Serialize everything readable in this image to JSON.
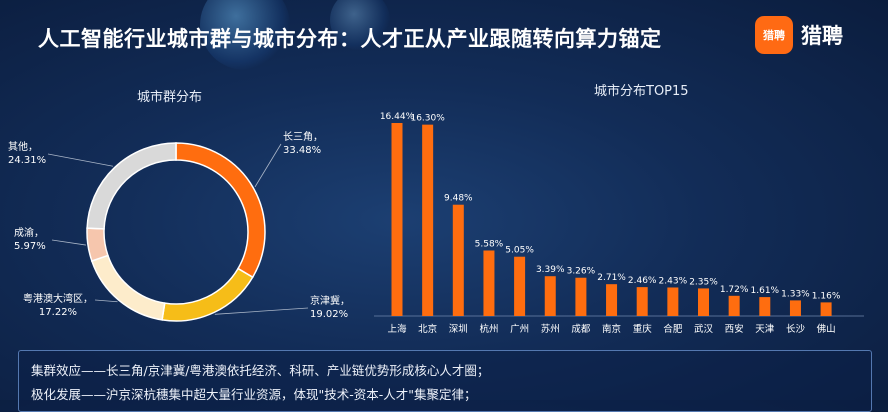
{
  "header": {
    "title": "人工智能行业城市群与城市分布：人才正从产业跟随转向算力锚定",
    "brand_logo_text": "猎聘",
    "brand_name": "猎聘",
    "brand_color": "#ff6a13"
  },
  "chart_data": [
    {
      "type": "pie",
      "title": "城市群分布",
      "donut": true,
      "categories": [
        "长三角",
        "京津冀",
        "粤港澳大湾区",
        "成渝",
        "其他"
      ],
      "values": [
        33.48,
        19.02,
        17.22,
        5.97,
        24.31
      ],
      "labels": [
        "33.48%",
        "19.02%",
        "17.22%",
        "5.97%",
        "24.31%"
      ],
      "colors": [
        "#ff6d0f",
        "#f6bd18",
        "#fdeccb",
        "#f6c6ad",
        "#d9d9d9"
      ]
    },
    {
      "type": "bar",
      "title": "城市分布TOP15",
      "categories": [
        "上海",
        "北京",
        "深圳",
        "杭州",
        "广州",
        "苏州",
        "成都",
        "南京",
        "重庆",
        "合肥",
        "武汉",
        "西安",
        "天津",
        "长沙",
        "佛山"
      ],
      "values": [
        16.44,
        16.3,
        9.48,
        5.58,
        5.05,
        3.39,
        3.26,
        2.71,
        2.46,
        2.43,
        2.35,
        1.72,
        1.61,
        1.33,
        1.16
      ],
      "labels": [
        "16.44%",
        "16.30%",
        "9.48%",
        "5.58%",
        "5.05%",
        "3.39%",
        "3.26%",
        "2.71%",
        "2.46%",
        "2.43%",
        "2.35%",
        "1.72%",
        "1.61%",
        "1.33%",
        "1.16%"
      ],
      "bar_color": "#ff6d0f",
      "grid": false
    }
  ],
  "notes": [
    "集群效应——长三角/京津冀/粤港澳依托经济、科研、产业链优势形成核心人才圈；",
    "极化发展——沪京深杭穗集中超大量行业资源，体现\"技术-资本-人才\"集聚定律；"
  ]
}
